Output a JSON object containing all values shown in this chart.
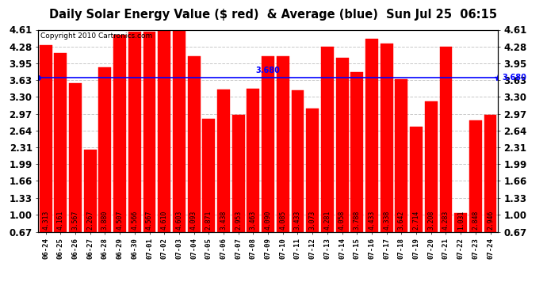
{
  "title": "Daily Solar Energy Value ($ red)  & Average (blue)  Sun Jul 25  06:15",
  "copyright": "Copyright 2010 Cartronics.com",
  "average": 3.68,
  "average_label": "3.680",
  "categories": [
    "06-24",
    "06-25",
    "06-26",
    "06-27",
    "06-28",
    "06-29",
    "06-30",
    "07-01",
    "07-02",
    "07-03",
    "07-04",
    "07-05",
    "07-06",
    "07-07",
    "07-08",
    "07-09",
    "07-10",
    "07-11",
    "07-12",
    "07-13",
    "07-14",
    "07-15",
    "07-16",
    "07-17",
    "07-18",
    "07-19",
    "07-20",
    "07-21",
    "07-22",
    "07-23",
    "07-24"
  ],
  "values": [
    4.313,
    4.161,
    3.567,
    2.267,
    3.88,
    4.507,
    4.566,
    4.567,
    4.61,
    4.603,
    4.093,
    2.871,
    3.438,
    2.953,
    3.463,
    4.09,
    4.085,
    3.433,
    3.073,
    4.281,
    4.058,
    3.788,
    4.433,
    4.338,
    3.642,
    2.714,
    3.208,
    4.283,
    1.031,
    2.848,
    2.946
  ],
  "bar_color": "#FF0000",
  "avg_line_color": "#0000FF",
  "bg_color": "#FFFFFF",
  "plot_bg_color": "#FFFFFF",
  "grid_color": "#C8C8C8",
  "title_fontsize": 10.5,
  "copyright_fontsize": 6.5,
  "label_fontsize": 5.8,
  "ytick_fontsize": 8.5,
  "xtick_fontsize": 6.5,
  "ylim_min": 0.67,
  "ylim_max": 4.61,
  "yticks": [
    0.67,
    1.0,
    1.33,
    1.66,
    1.99,
    2.31,
    2.64,
    2.97,
    3.3,
    3.63,
    3.95,
    4.28,
    4.61
  ]
}
